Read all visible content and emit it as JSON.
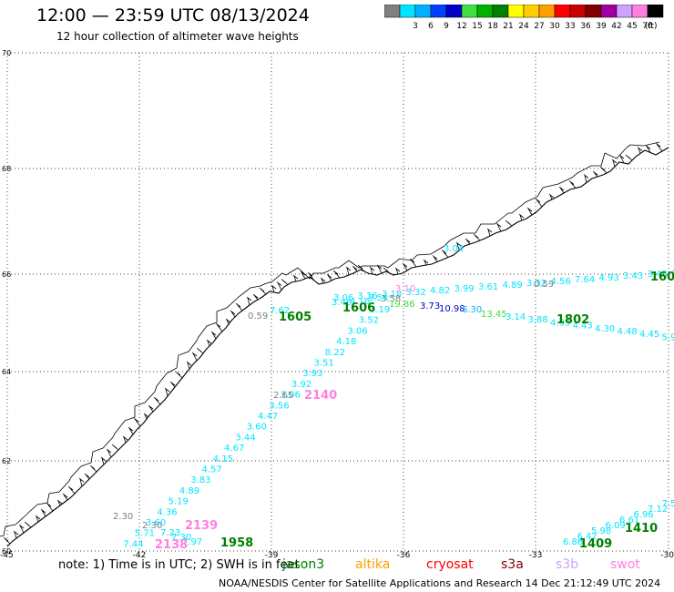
{
  "header": {
    "title": "12:00 — 23:59 UTC 08/13/2024",
    "subtitle": "12 hour collection of altimeter wave heights"
  },
  "color_scale": {
    "unit": "(ft)",
    "bins": [
      {
        "label": "",
        "color": "#808080"
      },
      {
        "label": "3",
        "color": "#00e5ff"
      },
      {
        "label": "6",
        "color": "#00b0ff"
      },
      {
        "label": "9",
        "color": "#0040ff"
      },
      {
        "label": "12",
        "color": "#0000c8"
      },
      {
        "label": "15",
        "color": "#40e040"
      },
      {
        "label": "18",
        "color": "#00b000"
      },
      {
        "label": "21",
        "color": "#008000"
      },
      {
        "label": "24",
        "color": "#ffff00"
      },
      {
        "label": "27",
        "color": "#ffd000"
      },
      {
        "label": "30",
        "color": "#ffa000"
      },
      {
        "label": "33",
        "color": "#ff0000"
      },
      {
        "label": "36",
        "color": "#c80000"
      },
      {
        "label": "39",
        "color": "#800000"
      },
      {
        "label": "42",
        "color": "#a000a0"
      },
      {
        "label": "45",
        "color": "#d0a0ff"
      },
      {
        "label": "70",
        "color": "#ff80e0"
      },
      {
        "label": "",
        "color": "#000000"
      }
    ]
  },
  "axes": {
    "lat_ticks": [
      "70",
      "68",
      "66",
      "64",
      "62",
      "60"
    ],
    "lon_ticks": [
      "-45",
      "-42",
      "-39",
      "-36",
      "-33",
      "-30"
    ]
  },
  "tracks": [
    {
      "name": "track-east-upper",
      "color": "#00e5ff",
      "labels": [
        "3.06",
        "3.16",
        "3.18",
        "3.32",
        "4.82",
        "3.99",
        "3.61",
        "4.89",
        "3.32",
        "4.56",
        "7.64",
        "4.93",
        "3.43",
        "3.48",
        "4.89"
      ]
    },
    {
      "name": "track-east-lower",
      "color": "#00e5ff",
      "labels": [
        "3.14",
        "3.88",
        "4.33",
        "4.43",
        "4.30",
        "4.48",
        "4.45",
        "5.98",
        "5"
      ]
    },
    {
      "name": "track-diagonal",
      "color": "#00e5ff",
      "labels": [
        "3.19",
        "3.52",
        "3.06",
        "4.18",
        "8.22",
        "3.51",
        "3.93",
        "3.92",
        "3.06",
        "3.56",
        "4.47",
        "3.60",
        "3.44",
        "4.67",
        "4.15",
        "4.57",
        "3.83",
        "4.89",
        "5.19",
        "4.36",
        "3.60",
        "5.71",
        "7.44"
      ]
    },
    {
      "name": "track-southeast",
      "color": "#00e5ff",
      "labels": [
        "6.86",
        "6.42",
        "5.98",
        "6.09",
        "6.61",
        "6.96",
        "7.12",
        "7.5"
      ]
    },
    {
      "name": "track-southwest",
      "color": "#00e5ff",
      "labels": [
        "7.23",
        "7.30",
        "7.97"
      ]
    }
  ],
  "misc_labels": [
    {
      "text": "0.59",
      "color": "#808080"
    },
    {
      "text": "7.62",
      "color": "#00e5ff"
    },
    {
      "text": "3.04",
      "color": "#00e5ff"
    },
    {
      "text": "0.59",
      "color": "#808080"
    },
    {
      "text": "2.65",
      "color": "#808080"
    },
    {
      "text": "2.30",
      "color": "#808080"
    },
    {
      "text": "3.73",
      "color": "#0000c8"
    },
    {
      "text": "10.98",
      "color": "#0000c8"
    },
    {
      "text": "6.30",
      "color": "#00b0ff"
    },
    {
      "text": "13.45",
      "color": "#40e040"
    },
    {
      "text": "3.10",
      "color": "#ff80e0"
    },
    {
      "text": "3.46",
      "color": "#00e5ff"
    },
    {
      "text": "4.16",
      "color": "#00e5ff"
    },
    {
      "text": "3.58",
      "color": "#808080"
    },
    {
      "text": "2.30",
      "color": "#808080"
    },
    {
      "text": "19.86",
      "color": "#40e040"
    },
    {
      "text": "3.54",
      "color": "#00e5ff"
    }
  ],
  "pass_times": [
    {
      "text": "1605",
      "color": "#008000"
    },
    {
      "text": "1606",
      "color": "#008000"
    },
    {
      "text": "1802",
      "color": "#008000"
    },
    {
      "text": "160",
      "color": "#008000"
    },
    {
      "text": "2140",
      "color": "#ff80e0"
    },
    {
      "text": "2139",
      "color": "#ff80e0"
    },
    {
      "text": "2138",
      "color": "#ff80e0"
    },
    {
      "text": "1958",
      "color": "#008000"
    },
    {
      "text": "1409",
      "color": "#008000"
    },
    {
      "text": "1410",
      "color": "#008000"
    }
  ],
  "footer": {
    "note": "note:  1) Time is in UTC;  2) SWH is in feet",
    "satellites": [
      {
        "name": "jason3",
        "color": "#008000"
      },
      {
        "name": "altika",
        "color": "#ffa000"
      },
      {
        "name": "cryosat",
        "color": "#ff0000"
      },
      {
        "name": "s3a",
        "color": "#800000"
      },
      {
        "name": "s3b",
        "color": "#d0a0ff"
      },
      {
        "name": "swot",
        "color": "#ff80e0"
      }
    ],
    "credit": "NOAA/NESDIS Center for Satellite Applications and Research     14 Dec 21:12:49 UTC 2024"
  }
}
